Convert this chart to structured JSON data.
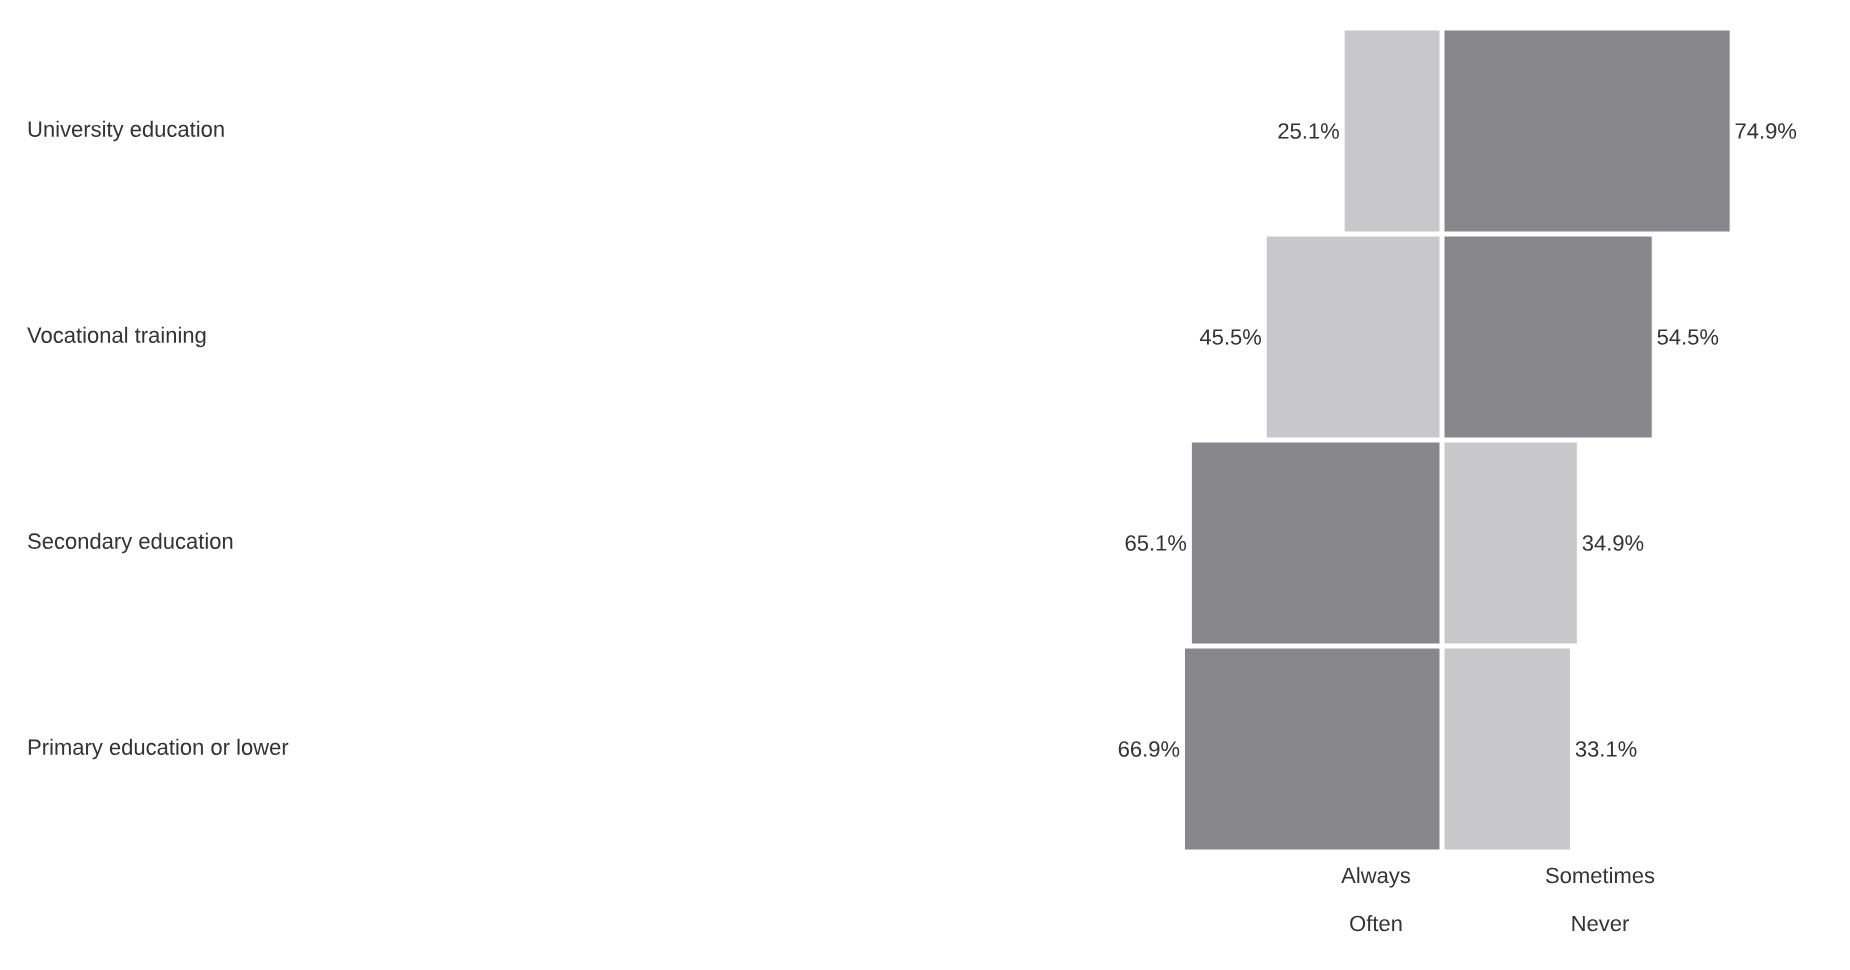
{
  "chart_data": [
    {
      "type": "bar",
      "orientation": "horizontal",
      "categories": [
        "University education",
        "Vocational training",
        "Secondary education",
        "Primary education or lower"
      ],
      "series": [
        {
          "name": "Always Often",
          "values": [
            25.1,
            45.5,
            65.1,
            66.9
          ],
          "colors": [
            "#c8c8ca",
            "#c8c8ca",
            "#87878b",
            "#87878b"
          ],
          "value_labels": [
            "25.1%",
            "45.5%",
            "65.1%",
            "66.9%"
          ]
        }
      ]
    },
    {
      "type": "bar",
      "orientation": "horizontal",
      "categories": [
        null,
        null,
        null,
        null
      ],
      "series": [
        {
          "name": "Sometimes Never",
          "values": [
            74.9,
            54.5,
            34.9,
            33.1
          ],
          "colors": [
            "#87878b",
            "#87878b",
            "#c8c8ca",
            "#c8c8ca"
          ],
          "value_labels": [
            "74.9%",
            "54.5%",
            "34.9%",
            "33.1%"
          ]
        }
      ]
    }
  ]
}
